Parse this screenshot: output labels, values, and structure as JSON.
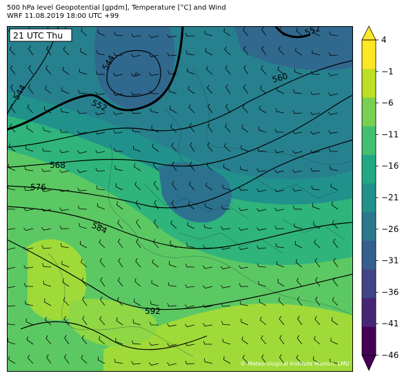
{
  "title_line1": "500 hPa level Geopotential [gpdm], Temperature [°C] and Wind",
  "title_line2": "WRF 11.08.2019 18:00 UTC +99",
  "valid_time_badge": "21 UTC Thu",
  "credit": "© Meteorological Institute Munich, LMU",
  "contour_labels": [
    "552",
    "544",
    "544",
    "552",
    "560",
    "568",
    "576",
    "584",
    "592"
  ],
  "colorbar": {
    "tick_labels": [
      "4",
      "−1",
      "−6",
      "−11",
      "−16",
      "−21",
      "−26",
      "−31",
      "−36",
      "−41",
      "−46"
    ],
    "colors": [
      "#440154",
      "#482475",
      "#414487",
      "#355f8d",
      "#2a788e",
      "#21918c",
      "#22a884",
      "#44bf70",
      "#7ad151",
      "#bddf26",
      "#fde725"
    ]
  }
}
